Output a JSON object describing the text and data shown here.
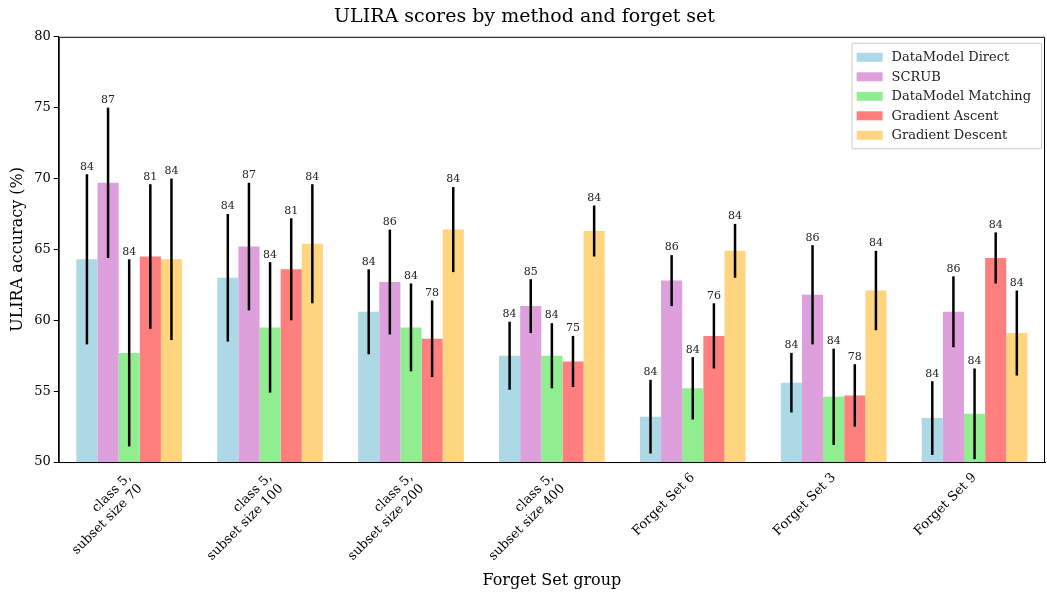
{
  "chart_data": {
    "type": "bar",
    "title": "ULIRA scores by method and forget set",
    "xlabel": "Forget Set group",
    "ylabel": "ULIRA accuracy (%)",
    "categories": [
      "class 5,\nsubset size 70",
      "class 5,\nsubset size 100",
      "class 5,\nsubset size 200",
      "class 5,\nsubset size 400",
      "Forget Set 6",
      "Forget Set 3",
      "Forget Set 9"
    ],
    "series": [
      {
        "name": "DataModel Direct",
        "color": "#add8e6",
        "values": [
          64.3,
          63.0,
          60.6,
          57.5,
          53.2,
          55.6,
          53.1
        ],
        "errors": [
          6.0,
          4.5,
          3.0,
          2.4,
          2.6,
          2.1,
          2.6
        ]
      },
      {
        "name": "SCRUB",
        "color": "#dda0dd",
        "values": [
          69.7,
          65.2,
          62.7,
          61.0,
          62.8,
          61.8,
          60.6
        ],
        "errors": [
          5.3,
          4.5,
          3.7,
          1.9,
          1.8,
          3.5,
          2.5
        ]
      },
      {
        "name": "DataModel Matching",
        "color": "#90ee90",
        "values": [
          57.7,
          59.5,
          59.5,
          57.5,
          55.2,
          54.6,
          53.4
        ],
        "errors": [
          6.6,
          4.6,
          3.1,
          2.3,
          2.2,
          3.4,
          3.2
        ]
      },
      {
        "name": "Gradient Ascent",
        "color": "#ff7f7f",
        "values": [
          64.5,
          63.6,
          58.7,
          57.1,
          58.9,
          54.7,
          64.4
        ],
        "errors": [
          5.1,
          3.6,
          2.7,
          1.8,
          2.3,
          2.2,
          1.8
        ]
      },
      {
        "name": "Gradient Descent",
        "color": "#ffd580",
        "values": [
          64.3,
          65.4,
          66.4,
          66.3,
          64.9,
          62.1,
          59.1
        ],
        "errors": [
          5.7,
          4.2,
          3.0,
          1.8,
          1.9,
          2.8,
          3.0
        ]
      }
    ],
    "annotations": [
      "84",
      "87",
      "84",
      "81",
      "84",
      "84",
      "87",
      "84",
      "81",
      "84",
      "84",
      "86",
      "84",
      "78",
      "84",
      "84",
      "85",
      "84",
      "75",
      "84",
      "84",
      "86",
      "84",
      "76",
      "84",
      "84",
      "86",
      "84",
      "78",
      "84",
      "84",
      "86",
      "84",
      "84",
      "84"
    ],
    "ylim": [
      50,
      80
    ],
    "yticks": [
      50,
      55,
      60,
      65,
      70,
      75,
      80
    ],
    "legend": "top right"
  }
}
